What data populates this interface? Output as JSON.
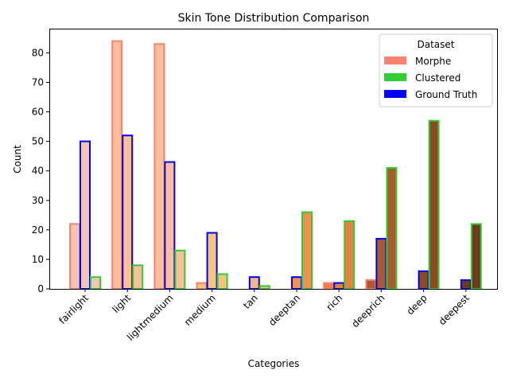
{
  "chart_data": {
    "type": "bar",
    "title": "Skin Tone Distribution Comparison",
    "xlabel": "Categories",
    "ylabel": "Count",
    "ylim": [
      0,
      88.2
    ],
    "yticks": [
      0,
      10,
      20,
      30,
      40,
      50,
      60,
      70,
      80
    ],
    "categories": [
      "fairlight",
      "light",
      "lightmedium",
      "medium",
      "tan",
      "deeptan",
      "rich",
      "deeprich",
      "deep",
      "deepest"
    ],
    "category_fill_colors": [
      "#f3c5b2",
      "#fcbf99",
      "#fcbf99",
      "#f5c47e",
      "#f7b78a",
      "#f29050",
      "#e68242",
      "#a95a2f",
      "#8b4a22",
      "#6e3a1f"
    ],
    "series": [
      {
        "name": "Morphe",
        "edge_color": "#fa8072",
        "legend_color": "#fa8072",
        "values": [
          22,
          84,
          83,
          2,
          0,
          0,
          2,
          3,
          0,
          0
        ]
      },
      {
        "name": "Ground Truth",
        "edge_color": "#0000ee",
        "legend_color": "#0000ff",
        "values": [
          50,
          52,
          43,
          19,
          4,
          4,
          2,
          17,
          6,
          3
        ]
      },
      {
        "name": "Clustered",
        "edge_color": "#32cd32",
        "legend_color": "#32cd32",
        "values": [
          4,
          8,
          13,
          5,
          1,
          26,
          23,
          41,
          57,
          22
        ]
      }
    ],
    "legend": {
      "title": "Dataset",
      "position": "top-right",
      "entries": [
        "Morphe",
        "Clustered",
        "Ground Truth"
      ]
    }
  }
}
